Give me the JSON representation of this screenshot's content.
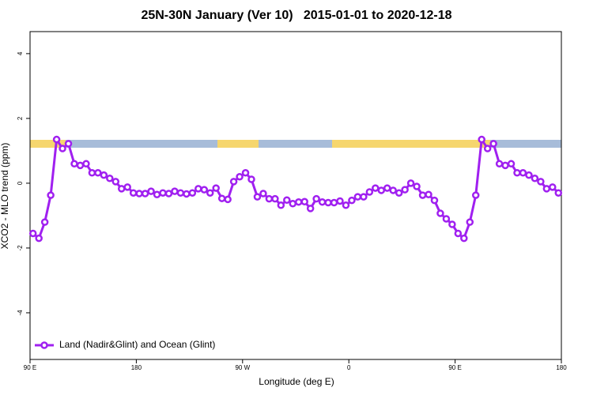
{
  "chart_data": {
    "type": "line",
    "title": "25N-30N January (Ver 10)   2015-01-01 to 2020-12-18",
    "x_label": "Longitude (deg E)",
    "y_label": "XCO2 - MLO trend (ppm)",
    "xlim": [
      90,
      540
    ],
    "ylim": [
      -5.44,
      4.68
    ],
    "xticks": [
      {
        "value": 90,
        "label": "90 E"
      },
      180,
      {
        "value": 270,
        "label": "90 W"
      },
      {
        "value": 360,
        "label": "0"
      },
      {
        "value": 450,
        "label": "90 E"
      },
      {
        "value": 540,
        "label": "180"
      }
    ],
    "yticks": [
      -4,
      -2,
      0,
      2,
      4
    ],
    "legend": "bottom-left",
    "x": [
      92.5,
      97.5,
      102.5,
      107.5,
      112.5,
      117.5,
      122.5,
      127.5,
      132.5,
      137.5,
      142.5,
      147.5,
      152.5,
      157.5,
      162.5,
      167.5,
      172.5,
      177.5,
      182.5,
      187.5,
      192.5,
      197.5,
      202.5,
      207.5,
      212.5,
      217.5,
      222.5,
      227.5,
      232.5,
      237.5,
      242.5,
      247.5,
      252.5,
      257.5,
      262.5,
      267.5,
      272.5,
      277.5,
      282.5,
      287.5,
      292.5,
      297.5,
      302.5,
      307.5,
      312.5,
      317.5,
      322.5,
      327.5,
      332.5,
      337.5,
      342.5,
      347.5,
      352.5,
      357.5,
      362.5,
      367.5,
      372.5,
      377.5,
      382.5,
      387.5,
      392.5,
      397.5,
      402.5,
      407.5,
      412.5,
      417.5,
      422.5,
      427.5,
      432.5,
      437.5,
      442.5,
      447.5,
      452.5,
      457.5,
      462.5,
      467.5,
      472.5,
      477.5,
      482.5,
      487.5,
      492.5,
      497.5,
      502.5,
      507.5,
      512.5,
      517.5,
      522.5,
      527.5,
      532.5,
      537.5
    ],
    "series": [
      {
        "name": "Land (Nadir&Glint) and Ocean (Glint)",
        "color": "#a020f0",
        "values": [
          -1.55,
          -1.7,
          -1.2,
          -0.37,
          1.35,
          1.07,
          1.22,
          0.6,
          0.55,
          0.6,
          0.32,
          0.32,
          0.25,
          0.15,
          0.05,
          -0.17,
          -0.12,
          -0.3,
          -0.32,
          -0.32,
          -0.25,
          -0.35,
          -0.3,
          -0.32,
          -0.25,
          -0.3,
          -0.33,
          -0.3,
          -0.17,
          -0.2,
          -0.3,
          -0.15,
          -0.47,
          -0.5,
          0.05,
          0.2,
          0.32,
          0.12,
          -0.42,
          -0.32,
          -0.48,
          -0.48,
          -0.68,
          -0.52,
          -0.63,
          -0.58,
          -0.57,
          -0.78,
          -0.48,
          -0.58,
          -0.6,
          -0.6,
          -0.55,
          -0.68,
          -0.53,
          -0.42,
          -0.42,
          -0.27,
          -0.15,
          -0.22,
          -0.15,
          -0.22,
          -0.3,
          -0.2,
          0.0,
          -0.1,
          -0.37,
          -0.35,
          -0.53,
          -0.93,
          -1.1,
          -1.27,
          -1.55,
          -1.7,
          -1.2,
          -0.37,
          1.35,
          1.07,
          1.22,
          0.6,
          0.55,
          0.6,
          0.32,
          0.32,
          0.25,
          0.15,
          0.05,
          -0.17,
          -0.12,
          -0.3
        ]
      }
    ]
  }
}
